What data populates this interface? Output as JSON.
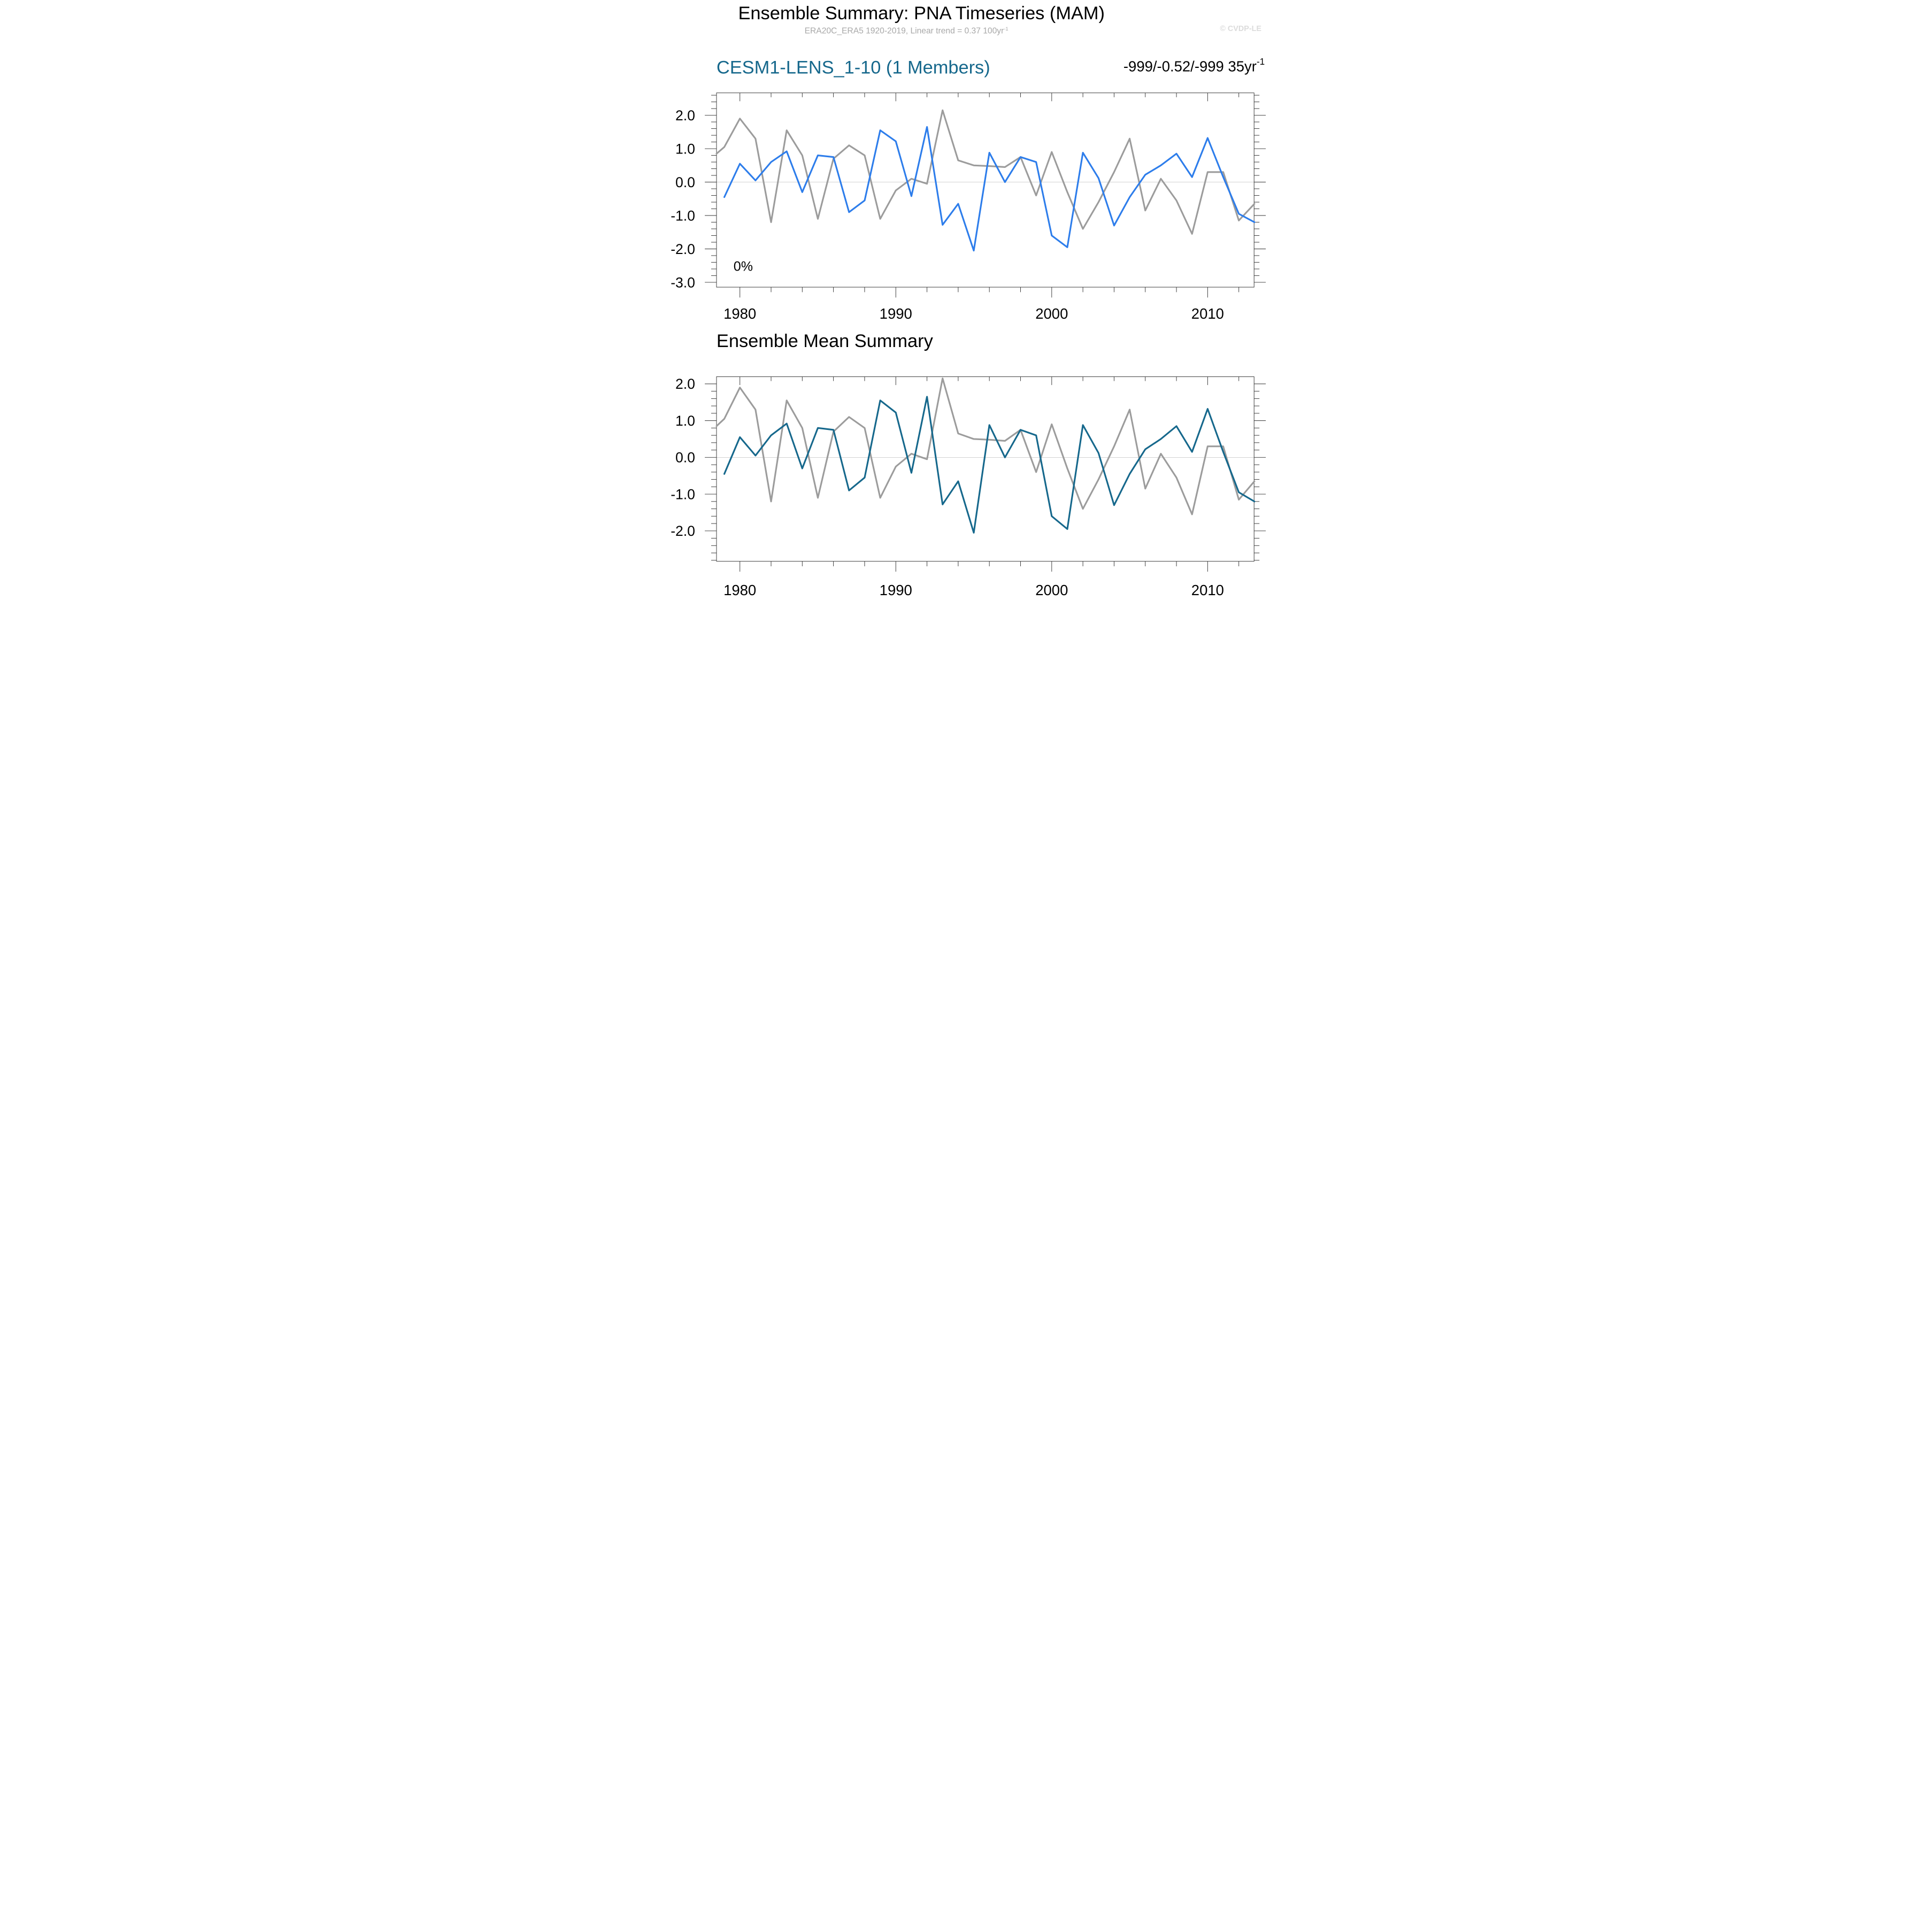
{
  "header": {
    "title": "Ensemble Summary: PNA Timeseries (MAM)",
    "subtitle": "ERA20C_ERA5 1920-2019, Linear trend = 0.37 100yr",
    "subtitle_sup": "-1",
    "watermark": "© CVDP-LE"
  },
  "panel1": {
    "title": "CESM1-LENS_1-10 (1 Members)",
    "trend": "-999/-0.52/-999 35yr",
    "trend_sup": "-1",
    "percent_label": "0%"
  },
  "panel2": {
    "title": "Ensemble Mean Summary"
  },
  "colors": {
    "member_line": "#2d7deb",
    "ensemble_mean_line": "#16688c",
    "observations_line": "#9c9c9c",
    "panel1_title": "#16688c",
    "subtitle_gray": "#a8a8a8",
    "watermark_gray": "#dcdcdc"
  },
  "chart_data": {
    "panels": [
      {
        "type": "line",
        "title": "CESM1-LENS_1-10 (1 Members)",
        "xlabel": "",
        "ylabel": "",
        "xlim": [
          1978.5,
          2013
        ],
        "ylim": [
          -3.15,
          2.67
        ],
        "x_ticks": [
          1980,
          1990,
          2000,
          2010
        ],
        "x_minor_step": 2,
        "y_ticks": [
          2.0,
          1.0,
          0.0,
          -1.0,
          -2.0,
          -3.0
        ],
        "y_minor_step": 0.2,
        "grid_zero_line": true,
        "legend": "none",
        "annotations": [
          "0%"
        ],
        "series": [
          {
            "name": "ERA20C_ERA5 observations",
            "color": "#9c9c9c",
            "x": [
              1978.5,
              1979,
              1980,
              1981,
              1982,
              1983,
              1984,
              1985,
              1986,
              1987,
              1988,
              1989,
              1990,
              1991,
              1992,
              1993,
              1994,
              1995,
              1996,
              1997,
              1998,
              1999,
              2000,
              2001,
              2002,
              2003,
              2004,
              2005,
              2006,
              2007,
              2008,
              2009,
              2010,
              2011,
              2012,
              2013
            ],
            "y": [
              0.85,
              1.05,
              1.9,
              1.3,
              -1.2,
              1.55,
              0.8,
              -1.1,
              0.7,
              1.1,
              0.8,
              -1.1,
              -0.25,
              0.1,
              -0.05,
              2.15,
              0.65,
              0.5,
              0.48,
              0.45,
              0.75,
              -0.4,
              0.9,
              -0.3,
              -1.4,
              -0.6,
              0.3,
              1.3,
              -0.85,
              0.1,
              -0.55,
              -1.55,
              0.3,
              0.3,
              -1.15,
              -0.65
            ]
          },
          {
            "name": "CESM1-LENS member",
            "color": "#2d7deb",
            "x": [
              1979,
              1980,
              1981,
              1982,
              1983,
              1984,
              1985,
              1986,
              1987,
              1988,
              1989,
              1990,
              1991,
              1992,
              1993,
              1994,
              1995,
              1996,
              1997,
              1998,
              1999,
              2000,
              2001,
              2002,
              2003,
              2004,
              2005,
              2006,
              2007,
              2008,
              2009,
              2010,
              2011,
              2012,
              2013
            ],
            "y": [
              -0.45,
              0.55,
              0.05,
              0.6,
              0.92,
              -0.3,
              0.8,
              0.75,
              -0.9,
              -0.55,
              1.55,
              1.22,
              -0.42,
              1.65,
              -1.28,
              -0.65,
              -2.05,
              0.88,
              0.0,
              0.75,
              0.6,
              -1.6,
              -1.95,
              0.88,
              0.12,
              -1.3,
              -0.45,
              0.22,
              0.5,
              0.85,
              0.15,
              1.32,
              0.15,
              -0.95,
              -1.2
            ]
          }
        ]
      },
      {
        "type": "line",
        "title": "Ensemble Mean Summary",
        "xlabel": "",
        "ylabel": "",
        "xlim": [
          1978.5,
          2013
        ],
        "ylim": [
          -2.83,
          2.2
        ],
        "x_ticks": [
          1980,
          1990,
          2000,
          2010
        ],
        "x_minor_step": 2,
        "y_ticks": [
          2.0,
          1.0,
          0.0,
          -1.0,
          -2.0
        ],
        "y_minor_step": 0.2,
        "grid_zero_line": true,
        "legend": "none",
        "annotations": [],
        "series": [
          {
            "name": "ERA20C_ERA5 observations",
            "color": "#9c9c9c",
            "x": [
              1978.5,
              1979,
              1980,
              1981,
              1982,
              1983,
              1984,
              1985,
              1986,
              1987,
              1988,
              1989,
              1990,
              1991,
              1992,
              1993,
              1994,
              1995,
              1996,
              1997,
              1998,
              1999,
              2000,
              2001,
              2002,
              2003,
              2004,
              2005,
              2006,
              2007,
              2008,
              2009,
              2010,
              2011,
              2012,
              2013
            ],
            "y": [
              0.85,
              1.05,
              1.9,
              1.3,
              -1.2,
              1.55,
              0.8,
              -1.1,
              0.7,
              1.1,
              0.8,
              -1.1,
              -0.25,
              0.1,
              -0.05,
              2.15,
              0.65,
              0.5,
              0.48,
              0.45,
              0.75,
              -0.4,
              0.9,
              -0.3,
              -1.4,
              -0.6,
              0.3,
              1.3,
              -0.85,
              0.1,
              -0.55,
              -1.55,
              0.3,
              0.3,
              -1.15,
              -0.65
            ]
          },
          {
            "name": "CESM1-LENS_1-10 ensemble mean",
            "color": "#16688c",
            "x": [
              1979,
              1980,
              1981,
              1982,
              1983,
              1984,
              1985,
              1986,
              1987,
              1988,
              1989,
              1990,
              1991,
              1992,
              1993,
              1994,
              1995,
              1996,
              1997,
              1998,
              1999,
              2000,
              2001,
              2002,
              2003,
              2004,
              2005,
              2006,
              2007,
              2008,
              2009,
              2010,
              2011,
              2012,
              2013
            ],
            "y": [
              -0.45,
              0.55,
              0.05,
              0.6,
              0.92,
              -0.3,
              0.8,
              0.75,
              -0.9,
              -0.55,
              1.55,
              1.22,
              -0.42,
              1.65,
              -1.28,
              -0.65,
              -2.05,
              0.88,
              0.0,
              0.75,
              0.6,
              -1.6,
              -1.95,
              0.88,
              0.12,
              -1.3,
              -0.45,
              0.22,
              0.5,
              0.85,
              0.15,
              1.32,
              0.15,
              -0.95,
              -1.2
            ]
          }
        ]
      }
    ]
  }
}
